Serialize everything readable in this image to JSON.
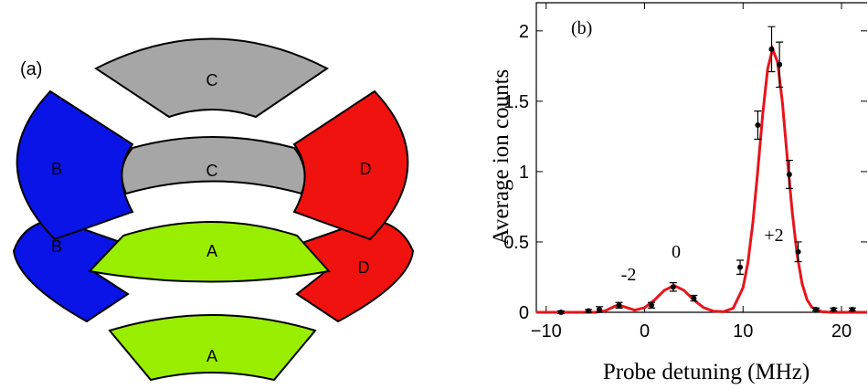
{
  "diagram": {
    "label": "(a)",
    "electrodes": [
      "C",
      "C",
      "B",
      "D",
      "B",
      "A",
      "D",
      "A"
    ]
  },
  "chart_data": {
    "type": "scatter",
    "label": "(b)",
    "xlabel": "Probe detuning (MHz)",
    "ylabel": "Average ion counts",
    "xlim": [
      -11,
      22.6
    ],
    "ylim": [
      0,
      2.2
    ],
    "xticks": [
      {
        "value": -10,
        "label": "−10"
      },
      0,
      10,
      20
    ],
    "yticks": [
      0,
      0.5,
      1,
      1.5,
      2
    ],
    "points": {
      "color": "#000000",
      "x": [
        -8.5,
        -5.7,
        -4.6,
        -2.6,
        0.7,
        2.9,
        5.0,
        9.7,
        11.5,
        12.9,
        13.7,
        14.7,
        15.6,
        17.4,
        19.2,
        21.1
      ],
      "y": [
        0.0,
        0.01,
        0.02,
        0.05,
        0.05,
        0.18,
        0.1,
        0.32,
        1.33,
        1.87,
        1.76,
        0.98,
        0.43,
        0.02,
        0.02,
        0.02
      ],
      "errors": [
        0.01,
        0.01,
        0.02,
        0.02,
        0.02,
        0.03,
        0.02,
        0.05,
        0.1,
        0.16,
        0.16,
        0.1,
        0.07,
        0.01,
        0.01,
        0.01
      ]
    },
    "fit": {
      "color": "#e8141b",
      "x": [
        -11,
        -8,
        -5,
        -4,
        -3,
        -2.6,
        -2,
        -1,
        0,
        1,
        2,
        3,
        4,
        5,
        6,
        7,
        8,
        9,
        10,
        10.5,
        11,
        11.5,
        12,
        12.5,
        13,
        13.5,
        14,
        14.5,
        15,
        15.5,
        16,
        16.5,
        17,
        18,
        19,
        22.6
      ],
      "y": [
        0,
        0,
        0,
        0.011,
        0.044,
        0.05,
        0.038,
        0.015,
        0.033,
        0.087,
        0.156,
        0.19,
        0.156,
        0.087,
        0.033,
        0.008,
        0.004,
        0.029,
        0.175,
        0.356,
        0.64,
        1.01,
        1.41,
        1.73,
        1.87,
        1.78,
        1.49,
        1.09,
        0.71,
        0.405,
        0.203,
        0.089,
        0.035,
        0.004,
        0,
        0
      ]
    },
    "annotations": [
      "-2",
      "0",
      "+2"
    ]
  }
}
